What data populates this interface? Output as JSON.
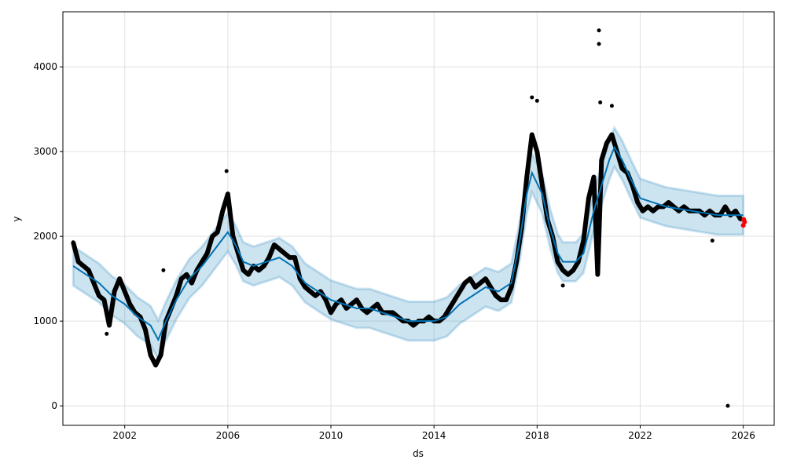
{
  "chart_data": {
    "type": "line",
    "title": "",
    "xlabel": "ds",
    "ylabel": "y",
    "xlim": [
      1999.6,
      2027.2
    ],
    "ylim": [
      -230,
      4650
    ],
    "xticks": [
      2002,
      2006,
      2010,
      2014,
      2018,
      2022,
      2026
    ],
    "xtick_labels": [
      "2002",
      "2006",
      "2010",
      "2014",
      "2018",
      "2022",
      "2026"
    ],
    "yticks": [
      0,
      1000,
      2000,
      3000,
      4000
    ],
    "ytick_labels": [
      "0",
      "1000",
      "2000",
      "3000",
      "4000"
    ],
    "grid": true,
    "colors": {
      "forecast": "#0072B2",
      "interval": "#0072B2",
      "observed": "#000000",
      "future": "#ff0000"
    },
    "forecast": {
      "name": "yhat",
      "x": [
        2000.0,
        2000.5,
        2001.0,
        2001.5,
        2002.0,
        2002.5,
        2003.0,
        2003.3,
        2003.6,
        2004.0,
        2004.5,
        2005.0,
        2005.5,
        2006.0,
        2006.3,
        2006.6,
        2007.0,
        2007.5,
        2008.0,
        2008.5,
        2009.0,
        2009.5,
        2010.0,
        2010.5,
        2011.0,
        2011.5,
        2012.0,
        2012.5,
        2013.0,
        2013.5,
        2014.0,
        2014.5,
        2015.0,
        2015.5,
        2016.0,
        2016.5,
        2017.0,
        2017.3,
        2017.6,
        2017.8,
        2018.2,
        2018.5,
        2018.8,
        2019.0,
        2019.5,
        2019.8,
        2020.2,
        2020.5,
        2020.8,
        2021.0,
        2021.3,
        2021.6,
        2022.0,
        2022.5,
        2023.0,
        2024.0,
        2025.0,
        2026.0
      ],
      "yhat": [
        1650,
        1550,
        1450,
        1300,
        1200,
        1050,
        950,
        780,
        1000,
        1250,
        1500,
        1650,
        1850,
        2050,
        1900,
        1700,
        1650,
        1700,
        1750,
        1650,
        1450,
        1350,
        1250,
        1200,
        1150,
        1150,
        1100,
        1050,
        1000,
        1000,
        1000,
        1050,
        1200,
        1300,
        1400,
        1350,
        1450,
        1900,
        2500,
        2750,
        2500,
        2100,
        1800,
        1700,
        1700,
        1800,
        2300,
        2600,
        2900,
        3050,
        2900,
        2700,
        2450,
        2400,
        2350,
        2300,
        2250,
        2250
      ],
      "interval_halfwidth": 230
    },
    "observed": {
      "name": "y",
      "points": [
        [
          2000.0,
          1930
        ],
        [
          2000.2,
          1700
        ],
        [
          2000.4,
          1650
        ],
        [
          2000.6,
          1600
        ],
        [
          2000.8,
          1450
        ],
        [
          2001.0,
          1300
        ],
        [
          2001.2,
          1250
        ],
        [
          2001.4,
          950
        ],
        [
          2001.6,
          1350
        ],
        [
          2001.8,
          1500
        ],
        [
          2002.0,
          1350
        ],
        [
          2002.2,
          1200
        ],
        [
          2002.4,
          1100
        ],
        [
          2002.6,
          1050
        ],
        [
          2002.8,
          900
        ],
        [
          2003.0,
          600
        ],
        [
          2003.2,
          480
        ],
        [
          2003.4,
          600
        ],
        [
          2003.6,
          1000
        ],
        [
          2003.8,
          1150
        ],
        [
          2004.0,
          1300
        ],
        [
          2004.2,
          1500
        ],
        [
          2004.4,
          1550
        ],
        [
          2004.6,
          1450
        ],
        [
          2004.8,
          1600
        ],
        [
          2005.0,
          1700
        ],
        [
          2005.2,
          1800
        ],
        [
          2005.4,
          2000
        ],
        [
          2005.6,
          2050
        ],
        [
          2005.8,
          2300
        ],
        [
          2006.0,
          2500
        ],
        [
          2006.2,
          2000
        ],
        [
          2006.4,
          1800
        ],
        [
          2006.6,
          1600
        ],
        [
          2006.8,
          1550
        ],
        [
          2007.0,
          1650
        ],
        [
          2007.2,
          1600
        ],
        [
          2007.4,
          1650
        ],
        [
          2007.6,
          1750
        ],
        [
          2007.8,
          1900
        ],
        [
          2008.0,
          1850
        ],
        [
          2008.2,
          1800
        ],
        [
          2008.4,
          1750
        ],
        [
          2008.6,
          1750
        ],
        [
          2008.8,
          1500
        ],
        [
          2009.0,
          1400
        ],
        [
          2009.2,
          1350
        ],
        [
          2009.4,
          1300
        ],
        [
          2009.6,
          1350
        ],
        [
          2009.8,
          1250
        ],
        [
          2010.0,
          1100
        ],
        [
          2010.2,
          1200
        ],
        [
          2010.4,
          1250
        ],
        [
          2010.6,
          1150
        ],
        [
          2010.8,
          1200
        ],
        [
          2011.0,
          1250
        ],
        [
          2011.2,
          1150
        ],
        [
          2011.4,
          1100
        ],
        [
          2011.6,
          1150
        ],
        [
          2011.8,
          1200
        ],
        [
          2012.0,
          1100
        ],
        [
          2012.2,
          1100
        ],
        [
          2012.4,
          1100
        ],
        [
          2012.6,
          1050
        ],
        [
          2012.8,
          1000
        ],
        [
          2013.0,
          1000
        ],
        [
          2013.2,
          950
        ],
        [
          2013.4,
          1000
        ],
        [
          2013.6,
          1000
        ],
        [
          2013.8,
          1050
        ],
        [
          2014.0,
          1000
        ],
        [
          2014.2,
          1000
        ],
        [
          2014.4,
          1050
        ],
        [
          2014.6,
          1150
        ],
        [
          2014.8,
          1250
        ],
        [
          2015.0,
          1350
        ],
        [
          2015.2,
          1450
        ],
        [
          2015.4,
          1500
        ],
        [
          2015.6,
          1400
        ],
        [
          2015.8,
          1450
        ],
        [
          2016.0,
          1500
        ],
        [
          2016.2,
          1400
        ],
        [
          2016.4,
          1300
        ],
        [
          2016.6,
          1250
        ],
        [
          2016.8,
          1250
        ],
        [
          2017.0,
          1400
        ],
        [
          2017.2,
          1700
        ],
        [
          2017.4,
          2100
        ],
        [
          2017.6,
          2700
        ],
        [
          2017.8,
          3200
        ],
        [
          2018.0,
          3000
        ],
        [
          2018.2,
          2600
        ],
        [
          2018.4,
          2200
        ],
        [
          2018.6,
          2000
        ],
        [
          2018.8,
          1700
        ],
        [
          2019.0,
          1600
        ],
        [
          2019.2,
          1550
        ],
        [
          2019.4,
          1600
        ],
        [
          2019.6,
          1700
        ],
        [
          2019.8,
          1950
        ],
        [
          2020.0,
          2450
        ],
        [
          2020.2,
          2700
        ],
        [
          2020.35,
          1550
        ],
        [
          2020.5,
          2900
        ],
        [
          2020.7,
          3100
        ],
        [
          2020.9,
          3200
        ],
        [
          2021.1,
          3000
        ],
        [
          2021.3,
          2800
        ],
        [
          2021.5,
          2750
        ],
        [
          2021.7,
          2600
        ],
        [
          2021.9,
          2400
        ],
        [
          2022.1,
          2300
        ],
        [
          2022.3,
          2350
        ],
        [
          2022.5,
          2300
        ],
        [
          2022.7,
          2350
        ],
        [
          2022.9,
          2350
        ],
        [
          2023.1,
          2400
        ],
        [
          2023.3,
          2350
        ],
        [
          2023.5,
          2300
        ],
        [
          2023.7,
          2350
        ],
        [
          2023.9,
          2300
        ],
        [
          2024.1,
          2300
        ],
        [
          2024.3,
          2300
        ],
        [
          2024.5,
          2250
        ],
        [
          2024.7,
          2300
        ],
        [
          2024.9,
          2250
        ],
        [
          2025.1,
          2250
        ],
        [
          2025.3,
          2350
        ],
        [
          2025.5,
          2250
        ],
        [
          2025.7,
          2300
        ],
        [
          2025.9,
          2200
        ]
      ],
      "outliers": [
        [
          2020.4,
          4430
        ],
        [
          2020.4,
          4270
        ],
        [
          2025.4,
          0
        ],
        [
          2017.8,
          3640
        ],
        [
          2018.0,
          3600
        ],
        [
          2020.45,
          3580
        ],
        [
          2020.9,
          3540
        ],
        [
          2005.95,
          2770
        ],
        [
          2001.3,
          850
        ],
        [
          2003.5,
          1600
        ],
        [
          2024.8,
          1950
        ],
        [
          2019.0,
          1420
        ]
      ]
    },
    "future_points": [
      [
        2026.0,
        2130
      ],
      [
        2026.02,
        2200
      ],
      [
        2026.05,
        2170
      ]
    ]
  }
}
